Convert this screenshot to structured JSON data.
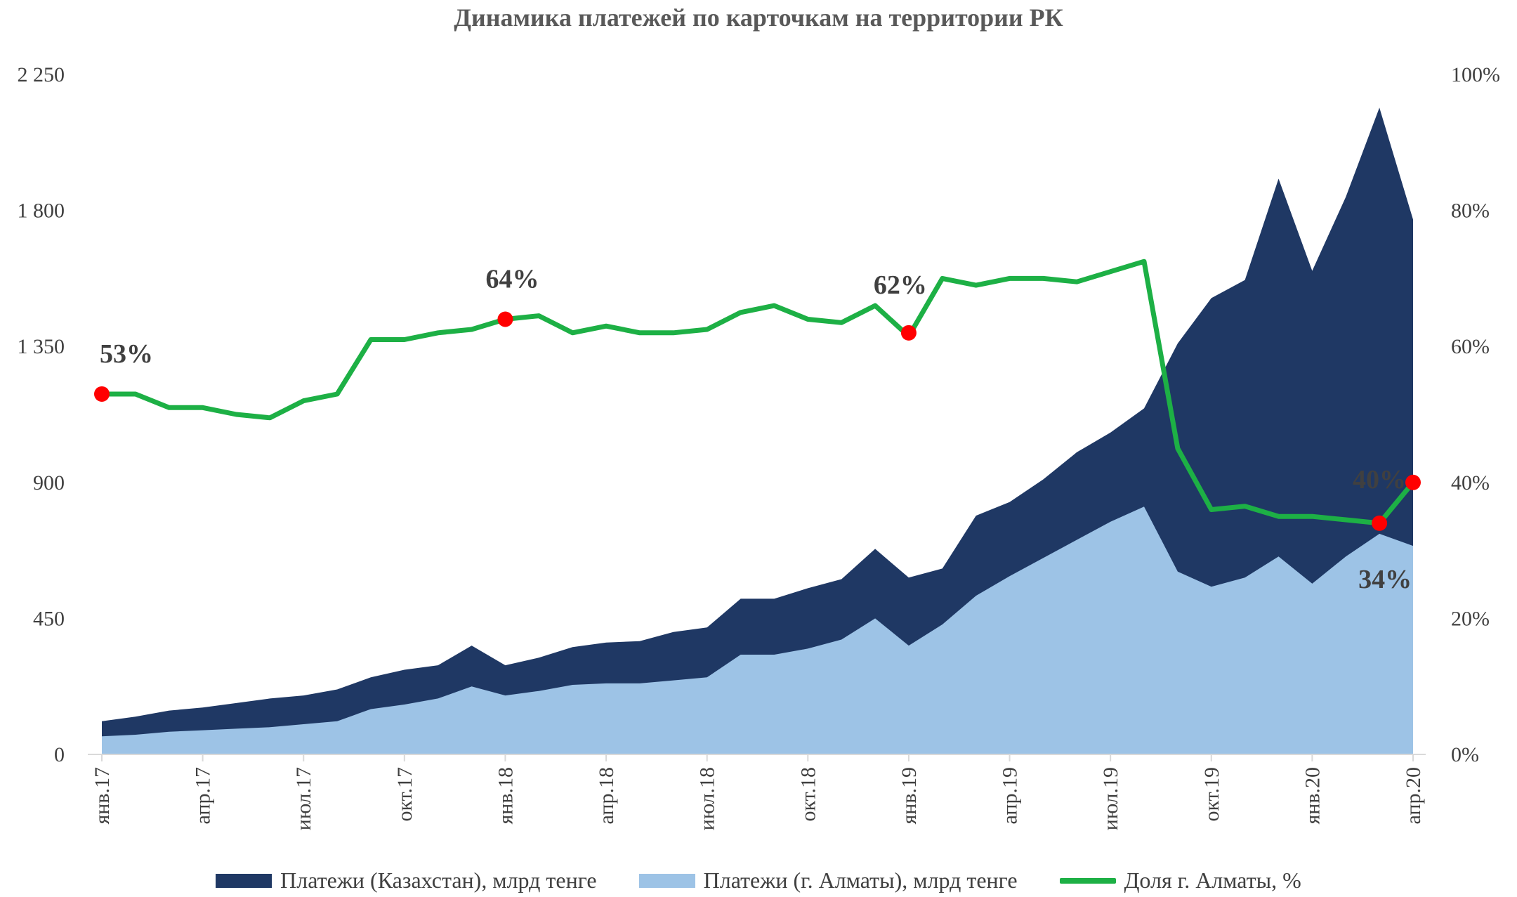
{
  "chart_data": {
    "type": "area",
    "title": "Динамика платежей по карточкам на территории РК",
    "y_left": {
      "ylim": [
        0,
        2250
      ],
      "ticks": [
        0,
        450,
        900,
        1350,
        1800,
        2250
      ],
      "tick_labels": [
        "0",
        "450",
        "900",
        "1 350",
        "1 800",
        "2 250"
      ]
    },
    "y_right": {
      "ylim": [
        0,
        100
      ],
      "ticks": [
        0,
        20,
        40,
        60,
        80,
        100
      ],
      "tick_labels": [
        "0%",
        "20%",
        "40%",
        "60%",
        "80%",
        "100%"
      ]
    },
    "x_tick_labels": [
      {
        "index": 0,
        "label": "янв.17"
      },
      {
        "index": 3,
        "label": "апр.17"
      },
      {
        "index": 6,
        "label": "июл.17"
      },
      {
        "index": 9,
        "label": "окт.17"
      },
      {
        "index": 12,
        "label": "янв.18"
      },
      {
        "index": 15,
        "label": "апр.18"
      },
      {
        "index": 18,
        "label": "июл.18"
      },
      {
        "index": 21,
        "label": "окт.18"
      },
      {
        "index": 24,
        "label": "янв.19"
      },
      {
        "index": 27,
        "label": "апр.19"
      },
      {
        "index": 30,
        "label": "июл.19"
      },
      {
        "index": 33,
        "label": "окт.19"
      },
      {
        "index": 36,
        "label": "янв.20"
      },
      {
        "index": 39,
        "label": "апр.20"
      }
    ],
    "series": [
      {
        "name": "Платежи (Казахстан), млрд тенге",
        "axis": "left",
        "color": "#1f3864",
        "values": [
          110,
          125,
          145,
          155,
          170,
          185,
          195,
          215,
          255,
          280,
          295,
          360,
          295,
          320,
          355,
          370,
          375,
          405,
          420,
          515,
          515,
          550,
          580,
          680,
          585,
          615,
          790,
          835,
          910,
          1000,
          1065,
          1145,
          1360,
          1510,
          1570,
          1905,
          1600,
          1845,
          2140,
          1770
        ]
      },
      {
        "name": "Платежи (г. Алматы), млрд тенге",
        "axis": "left",
        "color": "#9dc3e6",
        "values": [
          60,
          65,
          75,
          80,
          85,
          90,
          100,
          110,
          150,
          165,
          185,
          225,
          195,
          210,
          230,
          235,
          235,
          245,
          255,
          330,
          330,
          350,
          380,
          450,
          360,
          430,
          525,
          590,
          650,
          710,
          770,
          820,
          605,
          555,
          585,
          655,
          565,
          655,
          730,
          690
        ]
      },
      {
        "name": "Доля г. Алматы, %",
        "axis": "right",
        "color": "#1db045",
        "values": [
          53,
          53,
          51,
          51,
          50,
          49.5,
          52,
          53,
          61,
          61,
          62,
          62.5,
          64,
          64.5,
          62,
          63,
          62,
          62,
          62.5,
          65,
          66,
          64,
          63.5,
          66,
          61.5,
          70,
          69,
          70,
          70,
          69.5,
          71,
          72.5,
          45,
          36,
          36.5,
          35,
          35,
          34.5,
          34,
          40
        ]
      }
    ],
    "annotations": [
      {
        "index": 0,
        "value": 53,
        "label": "53%"
      },
      {
        "index": 12,
        "value": 64,
        "label": "64%"
      },
      {
        "index": 24,
        "value": 62,
        "label": "62%"
      },
      {
        "index": 38,
        "value": 34,
        "label": "34%"
      },
      {
        "index": 39,
        "value": 40,
        "label": "40%"
      }
    ],
    "legend_position": "bottom",
    "grid": false
  }
}
